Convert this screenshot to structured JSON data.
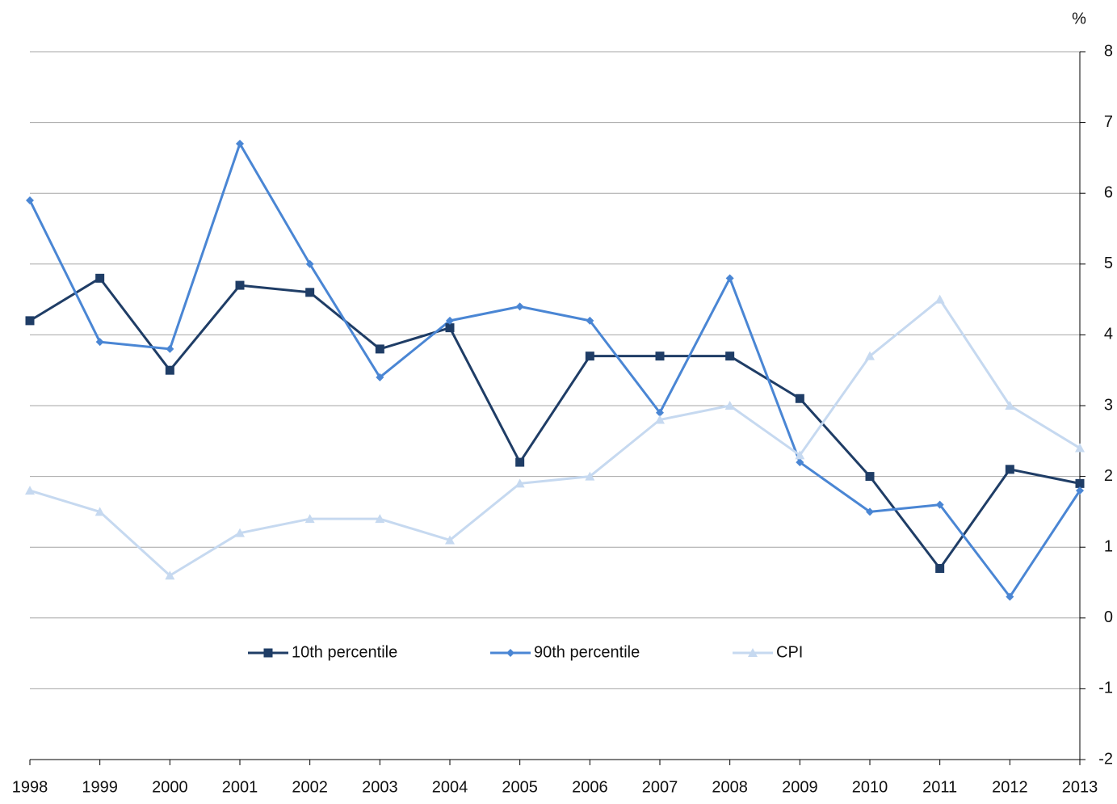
{
  "chart_data": {
    "type": "line",
    "y_label": "%",
    "categories": [
      "1998",
      "1999",
      "2000",
      "2001",
      "2002",
      "2003",
      "2004",
      "2005",
      "2006",
      "2007",
      "2008",
      "2009",
      "2010",
      "2011",
      "2012",
      "2013"
    ],
    "series": [
      {
        "name": "10th percentile",
        "color": "#1f3d66",
        "marker": "square",
        "values": [
          4.2,
          4.8,
          3.5,
          4.7,
          4.6,
          3.8,
          4.1,
          2.2,
          3.7,
          3.7,
          3.7,
          3.1,
          2.0,
          0.7,
          2.1,
          1.9
        ]
      },
      {
        "name": "90th percentile",
        "color": "#4a86d4",
        "marker": "diamond",
        "values": [
          5.9,
          3.9,
          3.8,
          6.7,
          5.0,
          3.4,
          4.2,
          4.4,
          4.2,
          2.9,
          4.8,
          2.2,
          1.5,
          1.6,
          0.3,
          1.8
        ]
      },
      {
        "name": "CPI",
        "color": "#c6d9f0",
        "marker": "triangle",
        "values": [
          1.8,
          1.5,
          0.6,
          1.2,
          1.4,
          1.4,
          1.1,
          1.9,
          2.0,
          2.8,
          3.0,
          2.3,
          3.7,
          4.5,
          3.0,
          2.4
        ]
      }
    ],
    "ylim": [
      -2,
      8
    ],
    "yticks": [
      -2,
      -1,
      0,
      1,
      2,
      3,
      4,
      5,
      6,
      7,
      8
    ],
    "grid": true,
    "y_axis_side": "right",
    "legend": "inside"
  }
}
